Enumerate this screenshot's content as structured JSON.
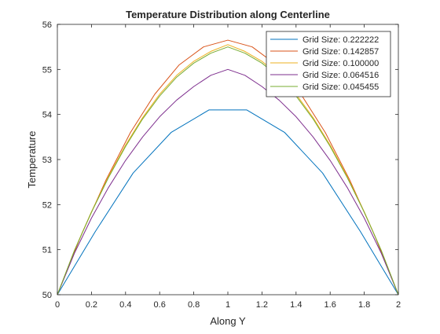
{
  "chart_data": {
    "type": "line",
    "title": "Temperature Distribution along Centerline",
    "xlabel": "Along Y",
    "ylabel": "Temperature",
    "xlim": [
      0,
      2
    ],
    "ylim": [
      50,
      56
    ],
    "xticks": [
      0,
      0.2,
      0.4,
      0.6,
      0.8,
      1,
      1.2,
      1.4,
      1.6,
      1.8,
      2
    ],
    "xtick_labels": [
      "0",
      "0.2",
      "0.4",
      "0.6",
      "0.8",
      "1",
      "1.2",
      "1.4",
      "1.6",
      "1.8",
      "2"
    ],
    "yticks": [
      50,
      51,
      52,
      53,
      54,
      55,
      56
    ],
    "ytick_labels": [
      "50",
      "51",
      "52",
      "53",
      "54",
      "55",
      "56"
    ],
    "grid": false,
    "legend_position": "top-right",
    "series": [
      {
        "name": "Grid Size: 0.222222",
        "color": "#0072BD",
        "x": [
          0,
          0.2222,
          0.4444,
          0.6667,
          0.8889,
          1.1111,
          1.3333,
          1.5556,
          1.7778,
          2.0
        ],
        "y": [
          50,
          51.4,
          52.7,
          53.6,
          54.1,
          54.1,
          53.6,
          52.7,
          51.4,
          50
        ]
      },
      {
        "name": "Grid Size: 0.142857",
        "color": "#D95319",
        "x": [
          0,
          0.1429,
          0.2857,
          0.4286,
          0.5714,
          0.7143,
          0.8571,
          1.0,
          1.1429,
          1.2857,
          1.4286,
          1.5714,
          1.7143,
          1.8571,
          2.0
        ],
        "y": [
          50,
          51.35,
          52.55,
          53.6,
          54.45,
          55.1,
          55.5,
          55.65,
          55.5,
          55.1,
          54.45,
          53.6,
          52.55,
          51.35,
          50
        ]
      },
      {
        "name": "Grid Size: 0.100000",
        "color": "#EDB120",
        "x": [
          0,
          0.1,
          0.2,
          0.3,
          0.4,
          0.5,
          0.6,
          0.7,
          0.8,
          0.9,
          1.0,
          1.1,
          1.2,
          1.3,
          1.4,
          1.5,
          1.6,
          1.7,
          1.8,
          1.9,
          2.0
        ],
        "y": [
          50,
          50.98,
          51.84,
          52.62,
          53.32,
          53.93,
          54.45,
          54.87,
          55.18,
          55.4,
          55.55,
          55.4,
          55.18,
          54.87,
          54.45,
          53.93,
          53.32,
          52.62,
          51.84,
          50.98,
          50
        ]
      },
      {
        "name": "Grid Size: 0.064516",
        "color": "#7E2F8E",
        "x": [
          0,
          0.1,
          0.2,
          0.3,
          0.4,
          0.5,
          0.6,
          0.7,
          0.8,
          0.9,
          1.0,
          1.1,
          1.2,
          1.3,
          1.4,
          1.5,
          1.6,
          1.7,
          1.8,
          1.9,
          2.0
        ],
        "y": [
          50,
          50.92,
          51.7,
          52.38,
          52.98,
          53.5,
          53.95,
          54.32,
          54.62,
          54.87,
          55.0,
          54.87,
          54.62,
          54.32,
          53.95,
          53.5,
          52.98,
          52.38,
          51.7,
          50.92,
          50
        ]
      },
      {
        "name": "Grid Size: 0.045455",
        "color": "#77AC30",
        "x": [
          0,
          0.1,
          0.2,
          0.3,
          0.4,
          0.5,
          0.6,
          0.7,
          0.8,
          0.9,
          1.0,
          1.1,
          1.2,
          1.3,
          1.4,
          1.5,
          1.6,
          1.7,
          1.8,
          1.9,
          2.0
        ],
        "y": [
          50,
          50.98,
          51.83,
          52.6,
          53.29,
          53.9,
          54.41,
          54.83,
          55.14,
          55.36,
          55.5,
          55.36,
          55.14,
          54.83,
          54.41,
          53.9,
          53.29,
          52.6,
          51.83,
          50.98,
          50
        ]
      }
    ]
  }
}
